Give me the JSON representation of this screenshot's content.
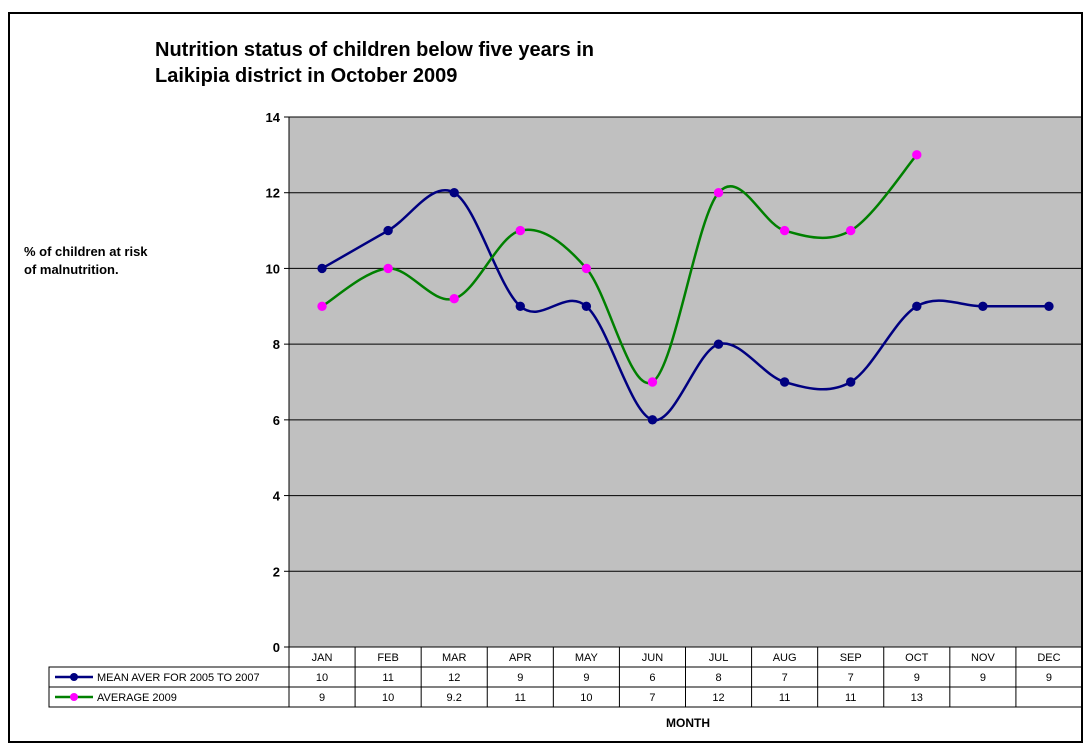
{
  "top_clipped_label": "",
  "chart_data": {
    "type": "line",
    "title_line1": "Nutrition status of children below five years in",
    "title_line2": "Laikipia district  in October 2009",
    "ylabel_line1": "% of children at risk",
    "ylabel_line2": "of  malnutrition.",
    "xlabel": "MONTH",
    "ylim": [
      0,
      14
    ],
    "yticks": [
      0,
      2,
      4,
      6,
      8,
      10,
      12,
      14
    ],
    "grid": "horizontal",
    "plot_background": "#C0C0C0",
    "legend_placement": "data-table-left",
    "categories": [
      "JAN",
      "FEB",
      "MAR",
      "APR",
      "MAY",
      "JUN",
      "JUL",
      "AUG",
      "SEP",
      "OCT",
      "NOV",
      "DEC"
    ],
    "series": [
      {
        "name": "MEAN AVER FOR 2005 TO 2007",
        "color": "#000080",
        "marker_color": "#000080",
        "values": [
          10,
          11,
          12,
          9,
          9,
          6,
          8,
          7,
          7,
          9,
          9,
          9
        ],
        "labels": [
          "10",
          "11",
          "12",
          "9",
          "9",
          "6",
          "8",
          "7",
          "7",
          "9",
          "9",
          "9"
        ]
      },
      {
        "name": "AVERAGE 2009",
        "color": "#008000",
        "marker_color": "#FF00FF",
        "values": [
          9,
          10,
          9.2,
          11,
          10,
          7,
          12,
          11,
          11,
          13,
          null,
          null
        ],
        "labels": [
          "9",
          "10",
          "9.2",
          "11",
          "10",
          "7",
          "12",
          "11",
          "11",
          "13",
          "",
          ""
        ]
      }
    ]
  }
}
